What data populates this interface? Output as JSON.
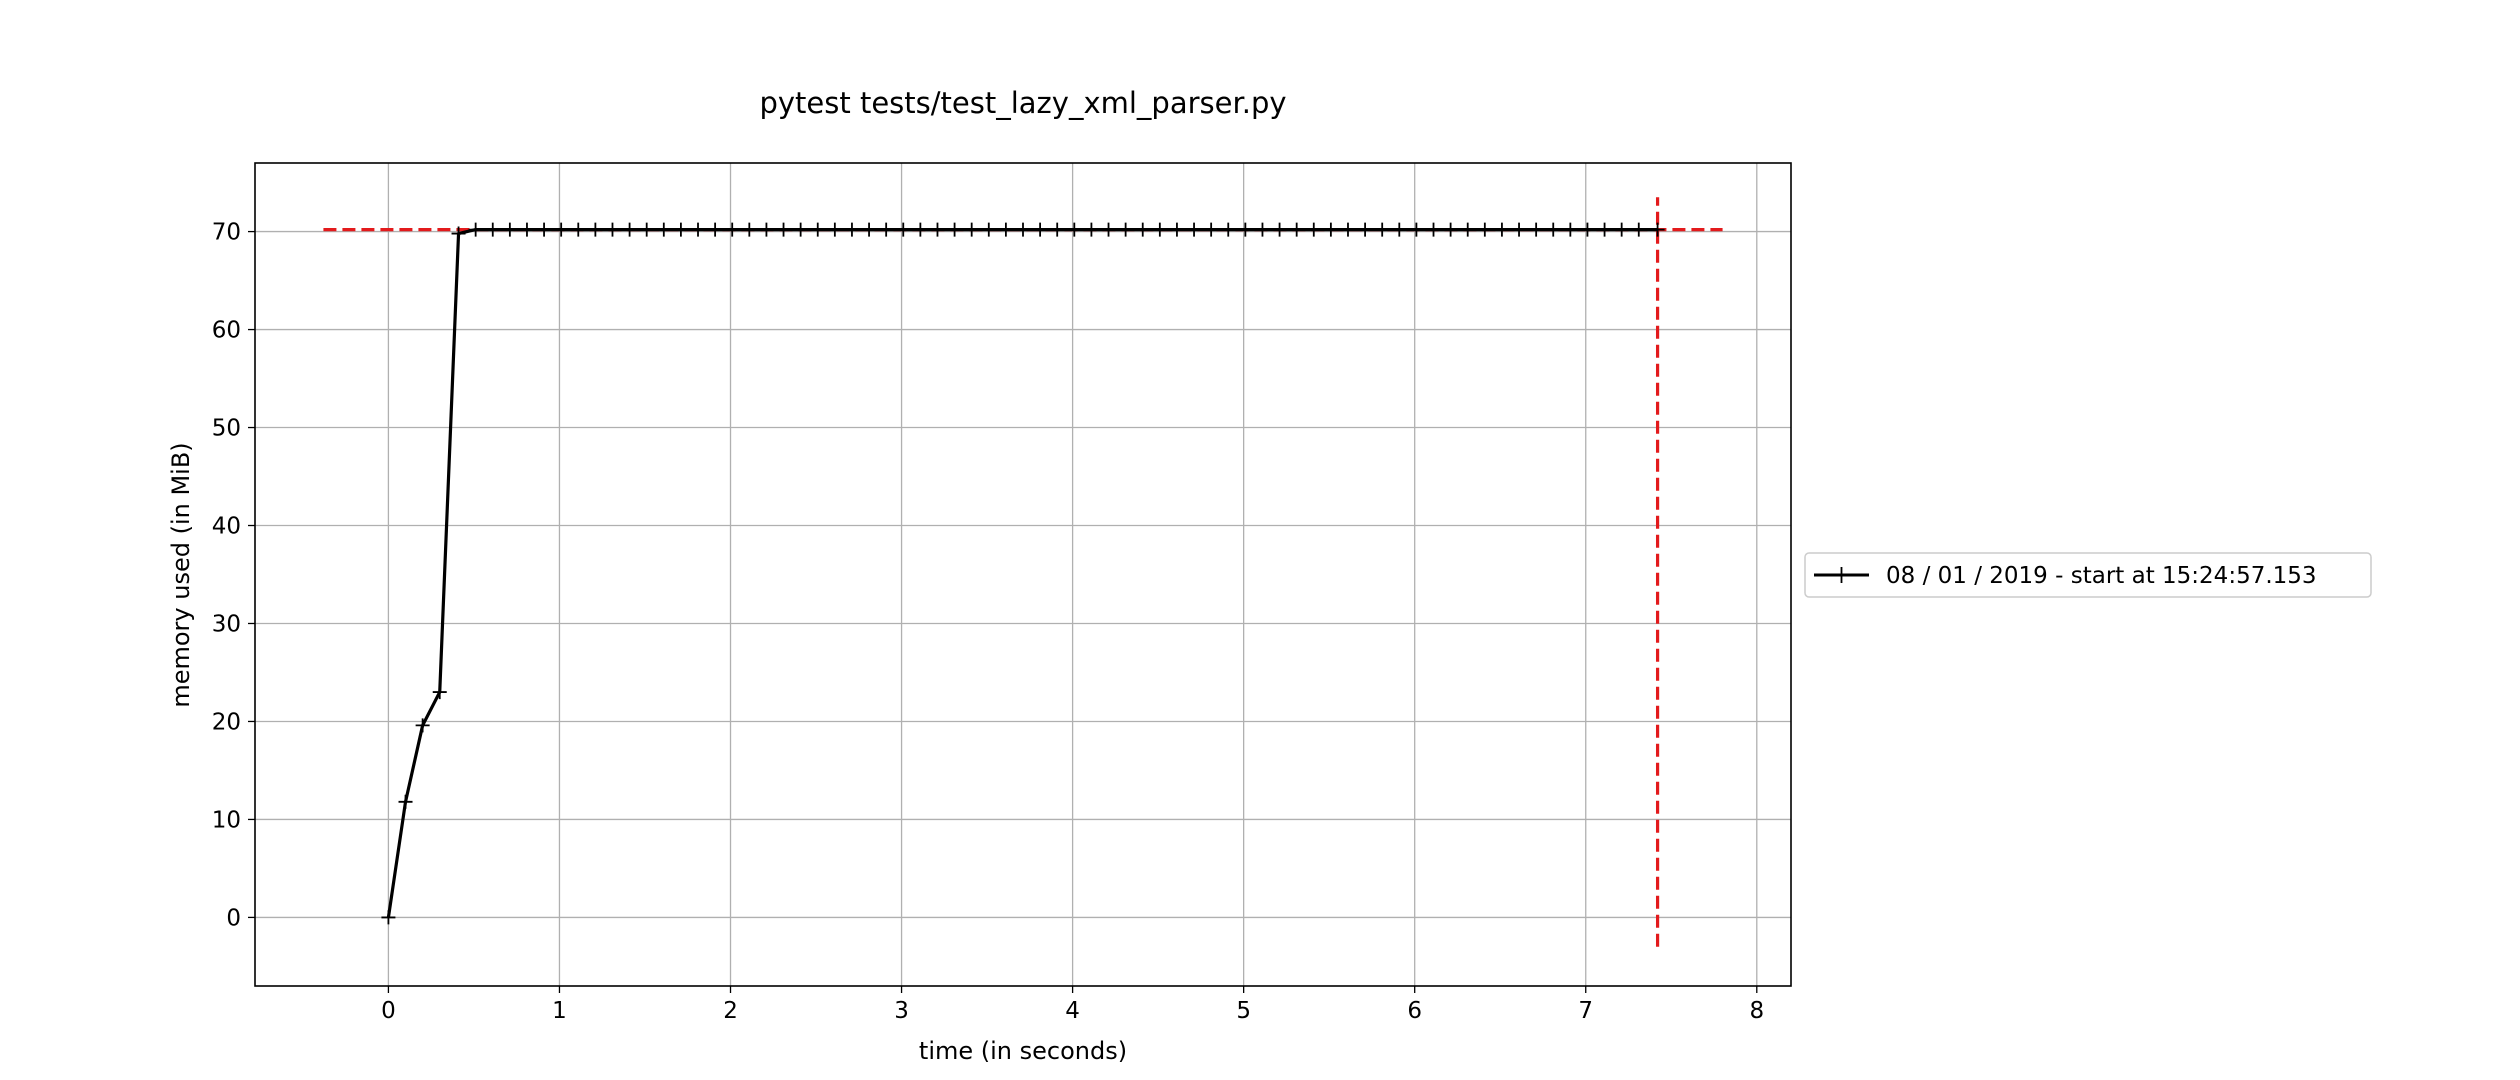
{
  "chart_data": {
    "type": "line",
    "title": "pytest tests/test_lazy_xml_parser.py",
    "xlabel": "time (in seconds)",
    "ylabel": "memory used (in MiB)",
    "xlim": [
      -0.78,
      8.2
    ],
    "ylim": [
      -7,
      77
    ],
    "xticks": [
      0,
      1,
      2,
      3,
      4,
      5,
      6,
      7,
      8
    ],
    "yticks": [
      0,
      10,
      20,
      30,
      40,
      50,
      60,
      70
    ],
    "grid": true,
    "legend_placement": "outside-right",
    "series": [
      {
        "name": "08 / 01 / 2019 - start at 15:24:57.153",
        "color": "#000000",
        "marker": "+",
        "x": [
          0.0,
          0.1,
          0.2,
          0.3,
          0.41,
          0.51,
          0.61,
          0.71,
          0.81,
          0.91,
          1.01,
          1.11,
          1.21,
          1.31,
          1.41,
          1.51,
          1.61,
          1.71,
          1.81,
          1.91,
          2.01,
          2.11,
          2.21,
          2.31,
          2.41,
          2.51,
          2.61,
          2.71,
          2.81,
          2.91,
          3.01,
          3.11,
          3.21,
          3.31,
          3.41,
          3.51,
          3.61,
          3.71,
          3.81,
          3.91,
          4.01,
          4.11,
          4.21,
          4.31,
          4.41,
          4.51,
          4.61,
          4.71,
          4.81,
          4.91,
          5.01,
          5.11,
          5.21,
          5.31,
          5.41,
          5.51,
          5.61,
          5.71,
          5.81,
          5.91,
          6.01,
          6.11,
          6.21,
          6.31,
          6.41,
          6.51,
          6.61,
          6.71,
          6.81,
          6.91,
          7.01,
          7.11,
          7.21,
          7.31,
          7.42
        ],
        "y": [
          0.0,
          11.8,
          19.6,
          23.0,
          69.8,
          70.2,
          70.2,
          70.2,
          70.2,
          70.2,
          70.2,
          70.2,
          70.2,
          70.2,
          70.2,
          70.2,
          70.2,
          70.2,
          70.2,
          70.2,
          70.2,
          70.2,
          70.2,
          70.2,
          70.2,
          70.2,
          70.2,
          70.2,
          70.2,
          70.2,
          70.2,
          70.2,
          70.2,
          70.2,
          70.2,
          70.2,
          70.2,
          70.2,
          70.2,
          70.2,
          70.2,
          70.2,
          70.2,
          70.2,
          70.2,
          70.2,
          70.2,
          70.2,
          70.2,
          70.2,
          70.2,
          70.2,
          70.2,
          70.2,
          70.2,
          70.2,
          70.2,
          70.2,
          70.2,
          70.2,
          70.2,
          70.2,
          70.2,
          70.2,
          70.2,
          70.2,
          70.2,
          70.2,
          70.2,
          70.2,
          70.2,
          70.2,
          70.2,
          70.2,
          70.2
        ]
      }
    ],
    "reference_lines": [
      {
        "orientation": "horizontal",
        "y": 70.2,
        "x_range": [
          -0.38,
          7.8
        ],
        "color": "#e31a1c",
        "style": "dashed"
      },
      {
        "orientation": "vertical",
        "x": 7.42,
        "y_range": [
          -3,
          73.5
        ],
        "color": "#e31a1c",
        "style": "dashed"
      }
    ]
  }
}
